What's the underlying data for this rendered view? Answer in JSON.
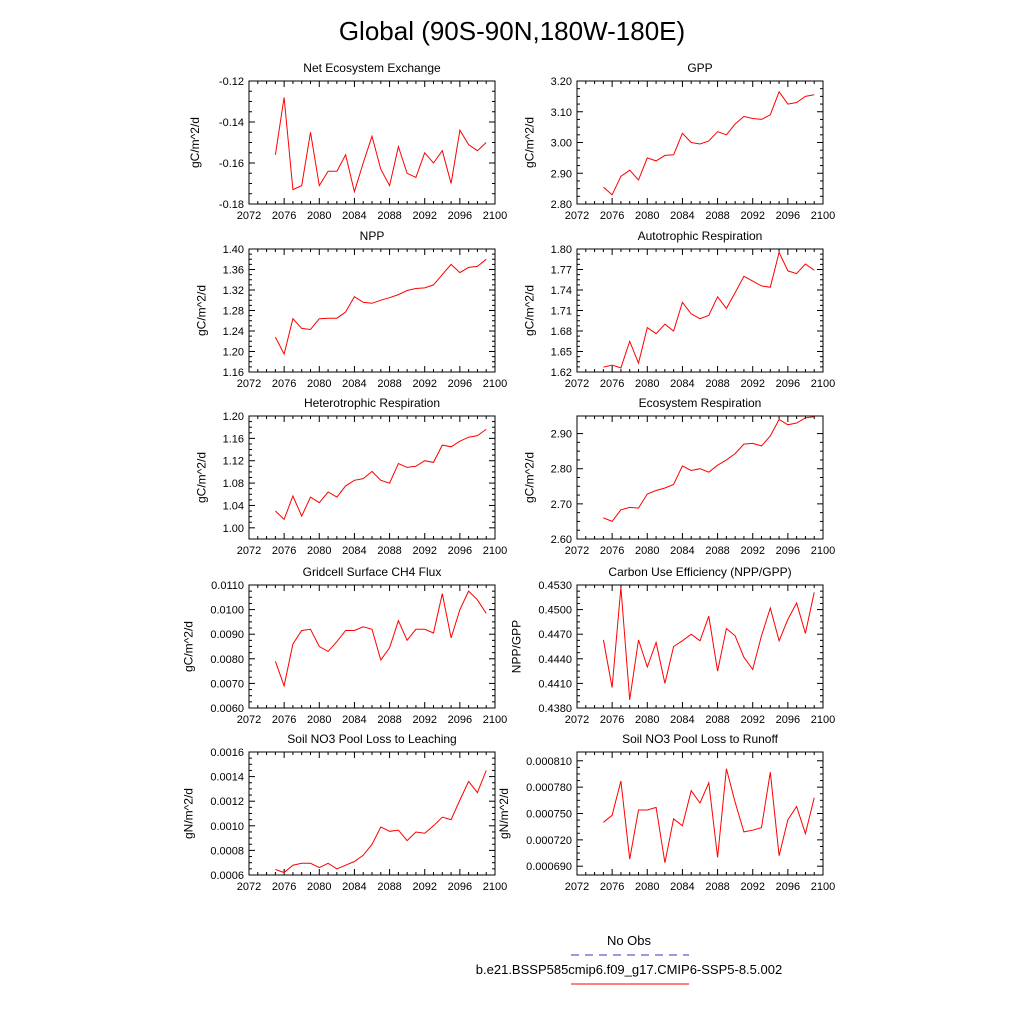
{
  "title": "Global (90S-90N,180W-180E)",
  "legend": {
    "obs_label": "No Obs",
    "obs_color": "#3333cc",
    "case_label": "b.e21.BSSP585cmip6.f09_g17.CMIP6-SSP5-8.5.002",
    "case_color": "#ff0000"
  },
  "series_color": "#ff0000",
  "x_ticks": [
    "2072",
    "2076",
    "2080",
    "2084",
    "2088",
    "2092",
    "2096",
    "2100"
  ],
  "chart_data": [
    {
      "type": "line",
      "title": "Net Ecosystem Exchange",
      "ylabel": "gC/m^2/d",
      "xlim": [
        2072,
        2100
      ],
      "ylim": [
        -0.18,
        -0.12
      ],
      "yticks": [
        "-0.18",
        "-0.16",
        "-0.14",
        "-0.12"
      ],
      "x": [
        2075,
        2076,
        2077,
        2078,
        2079,
        2080,
        2081,
        2082,
        2083,
        2084,
        2085,
        2086,
        2087,
        2088,
        2089,
        2090,
        2091,
        2092,
        2093,
        2094,
        2095,
        2096,
        2097,
        2098,
        2099
      ],
      "values": [
        -0.156,
        -0.128,
        -0.173,
        -0.171,
        -0.145,
        -0.171,
        -0.164,
        -0.164,
        -0.156,
        -0.174,
        -0.16,
        -0.147,
        -0.163,
        -0.171,
        -0.152,
        -0.165,
        -0.167,
        -0.155,
        -0.16,
        -0.154,
        -0.17,
        -0.144,
        -0.151,
        -0.154,
        -0.15
      ]
    },
    {
      "type": "line",
      "title": "GPP",
      "ylabel": "gC/m^2/d",
      "xlim": [
        2072,
        2100
      ],
      "ylim": [
        2.8,
        3.2
      ],
      "yticks": [
        "2.80",
        "2.90",
        "3.00",
        "3.10",
        "3.20"
      ],
      "x": [
        2075,
        2076,
        2077,
        2078,
        2079,
        2080,
        2081,
        2082,
        2083,
        2084,
        2085,
        2086,
        2087,
        2088,
        2089,
        2090,
        2091,
        2092,
        2093,
        2094,
        2095,
        2096,
        2097,
        2098,
        2099
      ],
      "values": [
        2.855,
        2.83,
        2.89,
        2.91,
        2.878,
        2.95,
        2.94,
        2.958,
        2.96,
        3.03,
        3.0,
        2.995,
        3.005,
        3.035,
        3.025,
        3.06,
        3.085,
        3.078,
        3.075,
        3.09,
        3.165,
        3.125,
        3.13,
        3.15,
        3.155
      ]
    },
    {
      "type": "line",
      "title": "NPP",
      "ylabel": "gC/m^2/d",
      "xlim": [
        2072,
        2100
      ],
      "ylim": [
        1.16,
        1.4
      ],
      "yticks": [
        "1.16",
        "1.20",
        "1.24",
        "1.28",
        "1.32",
        "1.36",
        "1.40"
      ],
      "x": [
        2075,
        2076,
        2077,
        2078,
        2079,
        2080,
        2081,
        2082,
        2083,
        2084,
        2085,
        2086,
        2087,
        2088,
        2089,
        2090,
        2091,
        2092,
        2093,
        2094,
        2095,
        2096,
        2097,
        2098,
        2099
      ],
      "values": [
        1.228,
        1.195,
        1.264,
        1.245,
        1.243,
        1.264,
        1.265,
        1.265,
        1.277,
        1.307,
        1.296,
        1.294,
        1.3,
        1.305,
        1.311,
        1.319,
        1.323,
        1.324,
        1.33,
        1.35,
        1.37,
        1.354,
        1.364,
        1.366,
        1.38
      ]
    },
    {
      "type": "line",
      "title": "Autotrophic Respiration",
      "ylabel": "gC/m^2/d",
      "xlim": [
        2072,
        2100
      ],
      "ylim": [
        1.62,
        1.8
      ],
      "yticks": [
        "1.62",
        "1.65",
        "1.68",
        "1.71",
        "1.74",
        "1.77",
        "1.80"
      ],
      "x": [
        2075,
        2076,
        2077,
        2078,
        2079,
        2080,
        2081,
        2082,
        2083,
        2084,
        2085,
        2086,
        2087,
        2088,
        2089,
        2090,
        2091,
        2092,
        2093,
        2094,
        2095,
        2096,
        2097,
        2098,
        2099
      ],
      "values": [
        1.627,
        1.63,
        1.626,
        1.665,
        1.633,
        1.685,
        1.676,
        1.69,
        1.68,
        1.722,
        1.705,
        1.698,
        1.703,
        1.73,
        1.713,
        1.736,
        1.76,
        1.753,
        1.746,
        1.744,
        1.795,
        1.768,
        1.764,
        1.778,
        1.769
      ]
    },
    {
      "type": "line",
      "title": "Heterotrophic Respiration",
      "ylabel": "gC/m^2/d",
      "xlim": [
        2072,
        2100
      ],
      "ylim": [
        0.98,
        1.2
      ],
      "yticks": [
        "1.00",
        "1.04",
        "1.08",
        "1.12",
        "1.16",
        "1.20"
      ],
      "x": [
        2075,
        2076,
        2077,
        2078,
        2079,
        2080,
        2081,
        2082,
        2083,
        2084,
        2085,
        2086,
        2087,
        2088,
        2089,
        2090,
        2091,
        2092,
        2093,
        2094,
        2095,
        2096,
        2097,
        2098,
        2099
      ],
      "values": [
        1.03,
        1.015,
        1.057,
        1.021,
        1.055,
        1.045,
        1.064,
        1.055,
        1.075,
        1.085,
        1.088,
        1.101,
        1.085,
        1.08,
        1.115,
        1.108,
        1.11,
        1.12,
        1.117,
        1.148,
        1.145,
        1.155,
        1.162,
        1.165,
        1.176
      ]
    },
    {
      "type": "line",
      "title": "Ecosystem Respiration",
      "ylabel": "gC/m^2/d",
      "xlim": [
        2072,
        2100
      ],
      "ylim": [
        2.6,
        2.95
      ],
      "yticks": [
        "2.60",
        "2.70",
        "2.80",
        "2.90"
      ],
      "x": [
        2075,
        2076,
        2077,
        2078,
        2079,
        2080,
        2081,
        2082,
        2083,
        2084,
        2085,
        2086,
        2087,
        2088,
        2089,
        2090,
        2091,
        2092,
        2093,
        2094,
        2095,
        2096,
        2097,
        2098,
        2099
      ],
      "values": [
        2.66,
        2.65,
        2.683,
        2.69,
        2.688,
        2.728,
        2.738,
        2.745,
        2.755,
        2.808,
        2.795,
        2.8,
        2.79,
        2.81,
        2.825,
        2.843,
        2.87,
        2.872,
        2.865,
        2.893,
        2.94,
        2.925,
        2.93,
        2.945,
        2.948
      ]
    },
    {
      "type": "line",
      "title": "Gridcell Surface CH4 Flux",
      "ylabel": "gC/m^2/d",
      "xlim": [
        2072,
        2100
      ],
      "ylim": [
        0.006,
        0.011
      ],
      "yticks": [
        "0.0060",
        "0.0070",
        "0.0080",
        "0.0090",
        "0.0100",
        "0.0110"
      ],
      "x": [
        2075,
        2076,
        2077,
        2078,
        2079,
        2080,
        2081,
        2082,
        2083,
        2084,
        2085,
        2086,
        2087,
        2088,
        2089,
        2090,
        2091,
        2092,
        2093,
        2094,
        2095,
        2096,
        2097,
        2098,
        2099
      ],
      "values": [
        0.0079,
        0.0069,
        0.0086,
        0.00915,
        0.0092,
        0.0085,
        0.0083,
        0.0087,
        0.00915,
        0.00915,
        0.0093,
        0.0092,
        0.00795,
        0.00845,
        0.00955,
        0.00875,
        0.0092,
        0.0092,
        0.00905,
        0.01065,
        0.00885,
        0.01,
        0.01075,
        0.0104,
        0.00985
      ]
    },
    {
      "type": "line",
      "title": "Carbon Use Efficiency (NPP/GPP)",
      "ylabel": "NPP/GPP",
      "xlim": [
        2072,
        2100
      ],
      "ylim": [
        0.438,
        0.453
      ],
      "yticks": [
        "0.4380",
        "0.4410",
        "0.4440",
        "0.4470",
        "0.4500",
        "0.4530"
      ],
      "x": [
        2075,
        2076,
        2077,
        2078,
        2079,
        2080,
        2081,
        2082,
        2083,
        2084,
        2085,
        2086,
        2087,
        2088,
        2089,
        2090,
        2091,
        2092,
        2093,
        2094,
        2095,
        2096,
        2097,
        2098,
        2099
      ],
      "values": [
        0.4463,
        0.4405,
        0.4527,
        0.439,
        0.4463,
        0.443,
        0.446,
        0.441,
        0.4455,
        0.4462,
        0.447,
        0.4462,
        0.4492,
        0.4425,
        0.4477,
        0.4468,
        0.4442,
        0.4427,
        0.4468,
        0.4502,
        0.4462,
        0.4488,
        0.4508,
        0.4471,
        0.4521
      ]
    },
    {
      "type": "line",
      "title": "Soil NO3 Pool Loss to Leaching",
      "ylabel": "gN/m^2/d",
      "xlim": [
        2072,
        2100
      ],
      "ylim": [
        0.0006,
        0.0016
      ],
      "yticks": [
        "0.0006",
        "0.0008",
        "0.0010",
        "0.0012",
        "0.0014",
        "0.0016"
      ],
      "x": [
        2075,
        2076,
        2077,
        2078,
        2079,
        2080,
        2081,
        2082,
        2083,
        2084,
        2085,
        2086,
        2087,
        2088,
        2089,
        2090,
        2091,
        2092,
        2093,
        2094,
        2095,
        2096,
        2097,
        2098,
        2099
      ],
      "values": [
        0.000645,
        0.00062,
        0.00068,
        0.000695,
        0.000695,
        0.00066,
        0.000695,
        0.00065,
        0.00068,
        0.00071,
        0.00076,
        0.00085,
        0.00099,
        0.000955,
        0.000965,
        0.00088,
        0.00095,
        0.00094,
        0.001,
        0.00107,
        0.00105,
        0.00121,
        0.00136,
        0.00127,
        0.00145
      ]
    },
    {
      "type": "line",
      "title": "Soil NO3 Pool Loss to Runoff",
      "ylabel": "gN/m^2/d",
      "xlim": [
        2072,
        2100
      ],
      "ylim": [
        0.00068,
        0.00082
      ],
      "yticks": [
        "0.000690",
        "0.000720",
        "0.000750",
        "0.000780",
        "0.000810"
      ],
      "x": [
        2075,
        2076,
        2077,
        2078,
        2079,
        2080,
        2081,
        2082,
        2083,
        2084,
        2085,
        2086,
        2087,
        2088,
        2089,
        2090,
        2091,
        2092,
        2093,
        2094,
        2095,
        2096,
        2097,
        2098,
        2099
      ],
      "values": [
        0.00074,
        0.000748,
        0.000787,
        0.000698,
        0.000754,
        0.000754,
        0.000757,
        0.000694,
        0.000744,
        0.000736,
        0.000776,
        0.000762,
        0.000785,
        0.0007,
        0.000801,
        0.000763,
        0.000729,
        0.000731,
        0.000734,
        0.000797,
        0.000702,
        0.000743,
        0.000758,
        0.000727,
        0.000768
      ]
    }
  ]
}
